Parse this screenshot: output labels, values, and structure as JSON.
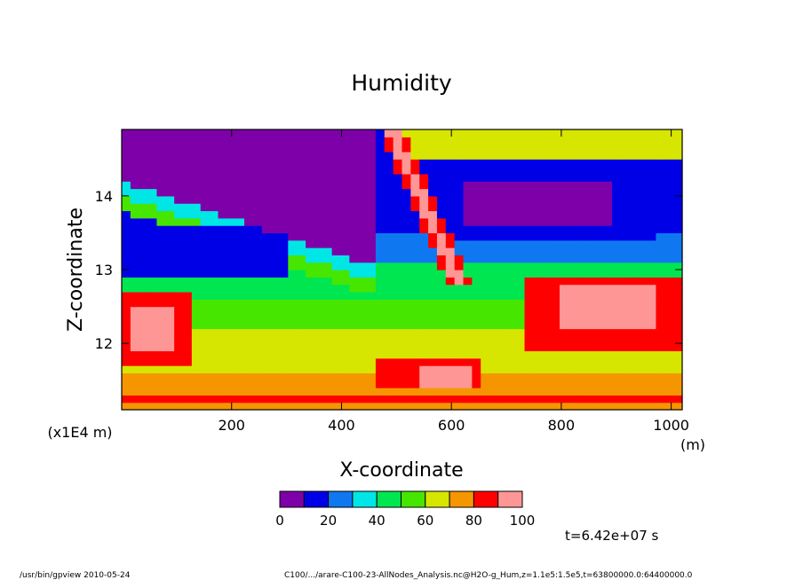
{
  "chart_data": {
    "type": "heatmap",
    "title": "Humidity",
    "xlabel": "X-coordinate",
    "ylabel": "Z-coordinate",
    "x_unit": "(m)",
    "y_unit": "(x1E4 m)",
    "xlim": [
      0,
      1020
    ],
    "ylim": [
      11.1,
      14.9
    ],
    "x_ticks": [
      "200",
      "400",
      "600",
      "800",
      "1000"
    ],
    "x_tick_values": [
      200,
      400,
      600,
      800,
      1000
    ],
    "y_ticks": [
      "12",
      "13",
      "14"
    ],
    "y_tick_values": [
      12,
      13,
      14
    ],
    "colorbar": {
      "levels": [
        0,
        10,
        20,
        30,
        40,
        50,
        60,
        70,
        80,
        90,
        100
      ],
      "labels": [
        "0",
        "20",
        "40",
        "60",
        "80",
        "100"
      ],
      "label_values": [
        0,
        20,
        40,
        60,
        80,
        100
      ],
      "colors": [
        "#7e00a8",
        "#0000e6",
        "#0f78f0",
        "#00e6e6",
        "#00e650",
        "#46e600",
        "#d7e600",
        "#f59600",
        "#ff0000",
        "#ff9696"
      ]
    },
    "field_description": "Relative humidity (%) contour fill over X (0-1020 m) and Z (11.1-14.9 x1E4 m)",
    "time_label": "t=6.42e+07 s",
    "footer_left": "/usr/bin/gpview   2010-05-24",
    "footer_right": "C100/.../arare-C100-23-AllNodes_Analysis.nc@H2O-g_Hum,z=1.1e5:1.5e5,t=63800000.0:64400000.0"
  }
}
